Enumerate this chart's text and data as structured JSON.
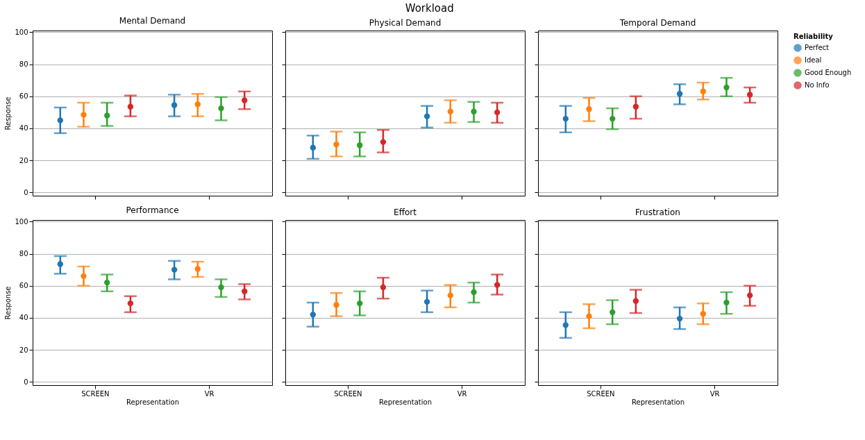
{
  "chart_data": [
    {
      "type": "other",
      "title": "Workload"
    },
    {
      "type": "scatter",
      "title": "Mental Demand",
      "ylabel": "Response",
      "categories": [
        "SCREEN",
        "VR"
      ],
      "ylim": [
        -2,
        101
      ],
      "yticks": [
        0,
        20,
        40,
        60,
        80,
        100
      ],
      "grid": "y",
      "marker": "circle",
      "tick_labels": "y",
      "legend": "right",
      "legend_title": "Reliability",
      "series": [
        {
          "name": "Perfect",
          "color": "#1f77b4",
          "values": [
            45,
            54.5
          ],
          "errors": [
            [
              37,
              53
            ],
            [
              47.5,
              61
            ]
          ]
        },
        {
          "name": "Ideal",
          "color": "#ff7f0e",
          "values": [
            48.5,
            55
          ],
          "errors": [
            [
              41,
              56
            ],
            [
              47.5,
              61.5
            ]
          ]
        },
        {
          "name": "Good Enough",
          "color": "#2ca02c",
          "values": [
            48,
            52.5
          ],
          "errors": [
            [
              41.5,
              56
            ],
            [
              45,
              59.5
            ]
          ]
        },
        {
          "name": "No Info",
          "color": "#d62728",
          "values": [
            53.5,
            57.5
          ],
          "errors": [
            [
              47.5,
              60.5
            ],
            [
              52,
              63
            ]
          ]
        }
      ]
    },
    {
      "type": "scatter",
      "title": "Physical Demand",
      "categories": [
        "SCREEN",
        "VR"
      ],
      "ylim": [
        -2,
        101
      ],
      "yticks": [
        0,
        20,
        40,
        60,
        80,
        100
      ],
      "grid": "y",
      "marker": "circle",
      "tick_labels": false,
      "series": [
        {
          "name": "Perfect",
          "color": "#1f77b4",
          "values": [
            28,
            47.5
          ],
          "errors": [
            [
              21,
              35.5
            ],
            [
              40.5,
              54
            ]
          ]
        },
        {
          "name": "Ideal",
          "color": "#ff7f0e",
          "values": [
            30,
            50.5
          ],
          "errors": [
            [
              22.5,
              38
            ],
            [
              43.5,
              57.5
            ]
          ]
        },
        {
          "name": "Good Enough",
          "color": "#2ca02c",
          "values": [
            29.5,
            50.5
          ],
          "errors": [
            [
              22.5,
              37.5
            ],
            [
              44,
              56.5
            ]
          ]
        },
        {
          "name": "No Info",
          "color": "#d62728",
          "values": [
            31.5,
            50
          ],
          "errors": [
            [
              25,
              39
            ],
            [
              43.5,
              56
            ]
          ]
        }
      ]
    },
    {
      "type": "scatter",
      "title": "Temporal Demand",
      "categories": [
        "SCREEN",
        "VR"
      ],
      "ylim": [
        -2,
        101
      ],
      "yticks": [
        0,
        20,
        40,
        60,
        80,
        100
      ],
      "grid": "y",
      "marker": "circle",
      "tick_labels": false,
      "series": [
        {
          "name": "Perfect",
          "color": "#1f77b4",
          "values": [
            46,
            61.5
          ],
          "errors": [
            [
              37.5,
              54
            ],
            [
              55,
              67.5
            ]
          ]
        },
        {
          "name": "Ideal",
          "color": "#ff7f0e",
          "values": [
            52,
            63
          ],
          "errors": [
            [
              44.5,
              59
            ],
            [
              58,
              68.5
            ]
          ]
        },
        {
          "name": "Good Enough",
          "color": "#2ca02c",
          "values": [
            46,
            65.5
          ],
          "errors": [
            [
              39.5,
              52.5
            ],
            [
              60,
              71.5
            ]
          ]
        },
        {
          "name": "No Info",
          "color": "#d62728",
          "values": [
            53.5,
            61
          ],
          "errors": [
            [
              46,
              60
            ],
            [
              56,
              65.5
            ]
          ]
        }
      ]
    },
    {
      "type": "scatter",
      "title": "Performance",
      "xlabel": "Representation",
      "ylabel": "Response",
      "categories": [
        "SCREEN",
        "VR"
      ],
      "ylim": [
        -2,
        101
      ],
      "yticks": [
        0,
        20,
        40,
        60,
        80,
        100
      ],
      "grid": "y",
      "marker": "circle",
      "series": [
        {
          "name": "Perfect",
          "color": "#1f77b4",
          "values": [
            73.5,
            70
          ],
          "errors": [
            [
              67.5,
              78.5
            ],
            [
              64,
              75.5
            ]
          ]
        },
        {
          "name": "Ideal",
          "color": "#ff7f0e",
          "values": [
            66,
            70.5
          ],
          "errors": [
            [
              60,
              72
            ],
            [
              65.5,
              75
            ]
          ]
        },
        {
          "name": "Good Enough",
          "color": "#2ca02c",
          "values": [
            62,
            59
          ],
          "errors": [
            [
              56.5,
              67
            ],
            [
              53,
              64
            ]
          ]
        },
        {
          "name": "No Info",
          "color": "#d62728",
          "values": [
            49,
            56.5
          ],
          "errors": [
            [
              43.5,
              53.5
            ],
            [
              51.5,
              61
            ]
          ]
        }
      ]
    },
    {
      "type": "scatter",
      "title": "Effort",
      "xlabel": "Representation",
      "categories": [
        "SCREEN",
        "VR"
      ],
      "ylim": [
        -2,
        101
      ],
      "yticks": [
        0,
        20,
        40,
        60,
        80,
        100
      ],
      "grid": "y",
      "marker": "circle",
      "tick_labels": "x",
      "series": [
        {
          "name": "Perfect",
          "color": "#1f77b4",
          "values": [
            42,
            50
          ],
          "errors": [
            [
              34.5,
              49.5
            ],
            [
              43.5,
              57
            ]
          ]
        },
        {
          "name": "Ideal",
          "color": "#ff7f0e",
          "values": [
            48,
            54
          ],
          "errors": [
            [
              41,
              55.5
            ],
            [
              46.5,
              60.5
            ]
          ]
        },
        {
          "name": "Good Enough",
          "color": "#2ca02c",
          "values": [
            49,
            56
          ],
          "errors": [
            [
              41.5,
              56.5
            ],
            [
              49.5,
              62
            ]
          ]
        },
        {
          "name": "No Info",
          "color": "#d62728",
          "values": [
            59,
            60.5
          ],
          "errors": [
            [
              52,
              65
            ],
            [
              54.5,
              67
            ]
          ]
        }
      ]
    },
    {
      "type": "scatter",
      "title": "Frustration",
      "xlabel": "Representation",
      "categories": [
        "SCREEN",
        "VR"
      ],
      "ylim": [
        -2,
        101
      ],
      "yticks": [
        0,
        20,
        40,
        60,
        80,
        100
      ],
      "grid": "y",
      "marker": "circle",
      "tick_labels": "x",
      "series": [
        {
          "name": "Perfect",
          "color": "#1f77b4",
          "values": [
            35.5,
            39.5
          ],
          "errors": [
            [
              27.5,
              43.5
            ],
            [
              33,
              46.5
            ]
          ]
        },
        {
          "name": "Ideal",
          "color": "#ff7f0e",
          "values": [
            41,
            42.5
          ],
          "errors": [
            [
              33.5,
              48.5
            ],
            [
              36,
              49
            ]
          ]
        },
        {
          "name": "Good Enough",
          "color": "#2ca02c",
          "values": [
            43.5,
            49.5
          ],
          "errors": [
            [
              36,
              51
            ],
            [
              42.5,
              56
            ]
          ]
        },
        {
          "name": "No Info",
          "color": "#d62728",
          "values": [
            50.5,
            54
          ],
          "errors": [
            [
              43,
              57.5
            ],
            [
              47.5,
              60
            ]
          ]
        }
      ]
    }
  ]
}
